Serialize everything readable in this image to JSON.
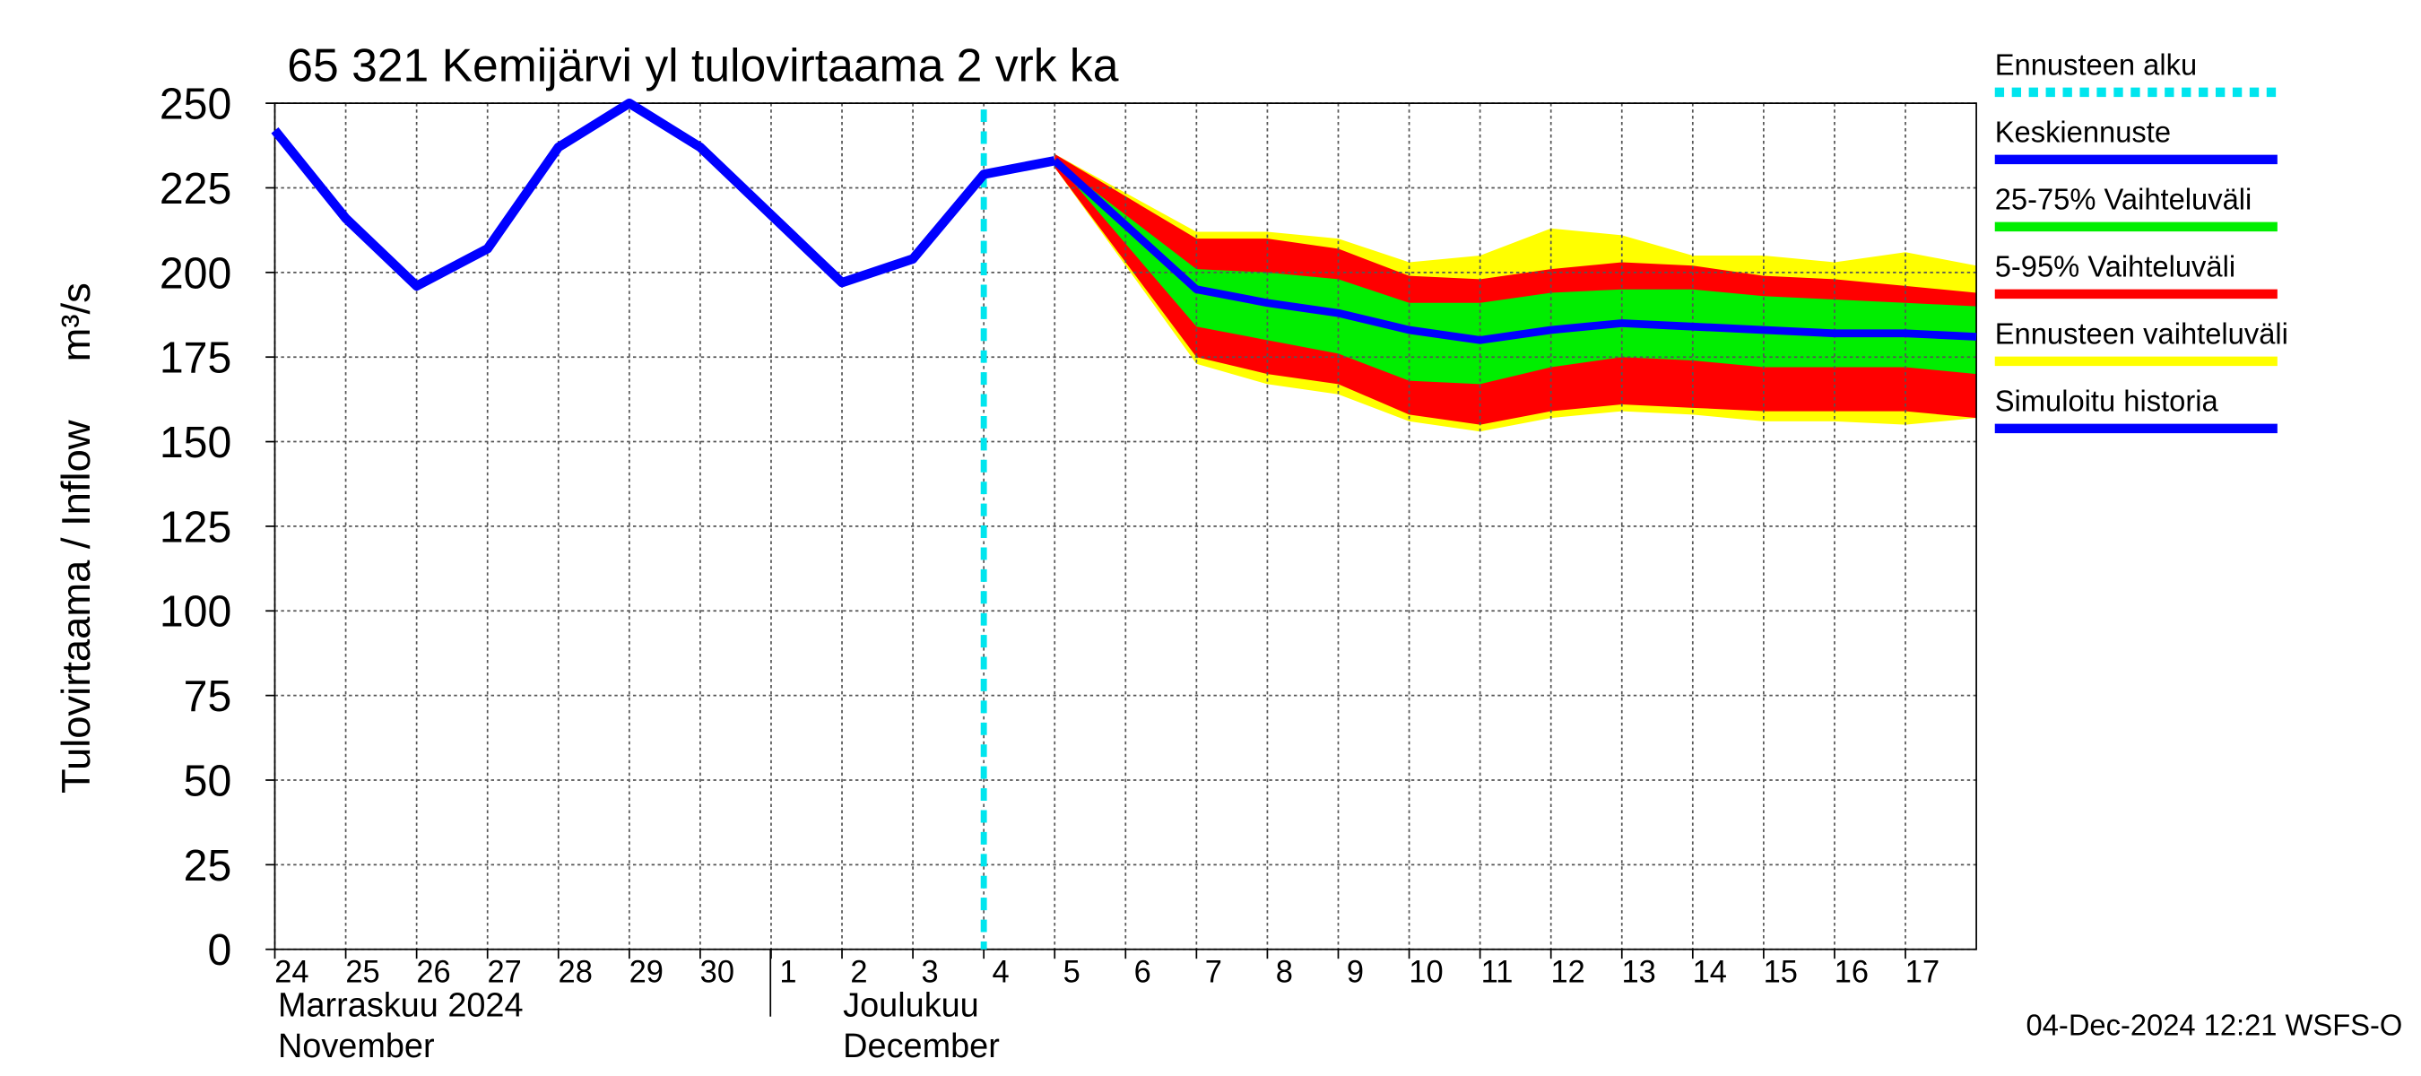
{
  "chart_data": {
    "type": "line",
    "title": "65 321 Kemijärvi yl tulovirtaama 2 vrk ka",
    "y_label": "Tulovirtaama / Inflow",
    "y_unit": "m³/s",
    "timestamp": "04-Dec-2024 12:21 WSFS-O",
    "months": [
      {
        "fi": "Marraskuu 2024",
        "en": "November"
      },
      {
        "fi": "Joulukuu",
        "en": "December"
      }
    ],
    "xlim": [
      "2024-11-24",
      "2024-12-18"
    ],
    "xticks": [
      {
        "value": "2024-11-24",
        "label": "24"
      },
      {
        "value": "2024-11-25",
        "label": "25"
      },
      {
        "value": "2024-11-26",
        "label": "26"
      },
      {
        "value": "2024-11-27",
        "label": "27"
      },
      {
        "value": "2024-11-28",
        "label": "28"
      },
      {
        "value": "2024-11-29",
        "label": "29"
      },
      {
        "value": "2024-11-30",
        "label": "30"
      },
      {
        "value": "2024-12-01",
        "label": "1"
      },
      {
        "value": "2024-12-02",
        "label": "2"
      },
      {
        "value": "2024-12-03",
        "label": "3"
      },
      {
        "value": "2024-12-04",
        "label": "4"
      },
      {
        "value": "2024-12-05",
        "label": "5"
      },
      {
        "value": "2024-12-06",
        "label": "6"
      },
      {
        "value": "2024-12-07",
        "label": "7"
      },
      {
        "value": "2024-12-08",
        "label": "8"
      },
      {
        "value": "2024-12-09",
        "label": "9"
      },
      {
        "value": "2024-12-10",
        "label": "10"
      },
      {
        "value": "2024-12-11",
        "label": "11"
      },
      {
        "value": "2024-12-12",
        "label": "12"
      },
      {
        "value": "2024-12-13",
        "label": "13"
      },
      {
        "value": "2024-12-14",
        "label": "14"
      },
      {
        "value": "2024-12-15",
        "label": "15"
      },
      {
        "value": "2024-12-16",
        "label": "16"
      },
      {
        "value": "2024-12-17",
        "label": "17"
      }
    ],
    "ylim": [
      0,
      250
    ],
    "yticks": [
      0,
      25,
      50,
      75,
      100,
      125,
      150,
      175,
      200,
      225,
      250
    ],
    "grid": true,
    "forecast_start": {
      "name": "Ennusteen alku",
      "x": "2024-12-04",
      "color": "#00e5ee"
    },
    "bands": [
      {
        "name": "Ennusteen vaihteluväli",
        "color": "#ffff00",
        "x": [
          "2024-12-05",
          "2024-12-07",
          "2024-12-08",
          "2024-12-09",
          "2024-12-10",
          "2024-12-11",
          "2024-12-12",
          "2024-12-13",
          "2024-12-14",
          "2024-12-15",
          "2024-12-16",
          "2024-12-17",
          "2024-12-18"
        ],
        "upper": [
          235,
          212,
          212,
          210,
          203,
          205,
          213,
          211,
          205,
          205,
          203,
          206,
          202
        ],
        "lower": [
          231,
          173,
          167,
          164,
          156,
          153,
          157,
          159,
          158,
          156,
          156,
          155,
          157
        ]
      },
      {
        "name": "5-95% Vaihteluväli",
        "color": "#ff0000",
        "x": [
          "2024-12-05",
          "2024-12-07",
          "2024-12-08",
          "2024-12-09",
          "2024-12-10",
          "2024-12-11",
          "2024-12-12",
          "2024-12-13",
          "2024-12-14",
          "2024-12-15",
          "2024-12-16",
          "2024-12-17",
          "2024-12-18"
        ],
        "upper": [
          235,
          210,
          210,
          207,
          199,
          198,
          201,
          203,
          202,
          199,
          198,
          196,
          194
        ],
        "lower": [
          231,
          175,
          170,
          167,
          158,
          155,
          159,
          161,
          160,
          159,
          159,
          159,
          157
        ]
      },
      {
        "name": "25-75% Vaihteluväli",
        "color": "#00ee00",
        "x": [
          "2024-12-05",
          "2024-12-07",
          "2024-12-08",
          "2024-12-09",
          "2024-12-10",
          "2024-12-11",
          "2024-12-12",
          "2024-12-13",
          "2024-12-14",
          "2024-12-15",
          "2024-12-16",
          "2024-12-17",
          "2024-12-18"
        ],
        "upper": [
          233,
          201,
          200,
          198,
          191,
          191,
          194,
          195,
          195,
          193,
          192,
          191,
          190
        ],
        "lower": [
          233,
          184,
          180,
          176,
          168,
          167,
          172,
          175,
          174,
          172,
          172,
          172,
          170
        ]
      }
    ],
    "series": [
      {
        "name": "Simuloitu historia",
        "color": "#0000ff",
        "x": [
          "2024-11-24",
          "2024-11-25",
          "2024-11-26",
          "2024-11-27",
          "2024-11-28",
          "2024-11-29",
          "2024-11-30",
          "2024-12-01",
          "2024-12-02",
          "2024-12-03",
          "2024-12-04",
          "2024-12-05"
        ],
        "values": [
          242,
          216,
          196,
          207,
          237,
          250,
          237,
          217,
          197,
          204,
          229,
          233
        ]
      },
      {
        "name": "Keskiennuste",
        "color": "#0000ff",
        "x": [
          "2024-12-05",
          "2024-12-07",
          "2024-12-08",
          "2024-12-09",
          "2024-12-10",
          "2024-12-11",
          "2024-12-12",
          "2024-12-13",
          "2024-12-14",
          "2024-12-15",
          "2024-12-16",
          "2024-12-17",
          "2024-12-18"
        ],
        "values": [
          233,
          195,
          191,
          188,
          183,
          180,
          183,
          185,
          184,
          183,
          182,
          182,
          181
        ]
      }
    ]
  }
}
